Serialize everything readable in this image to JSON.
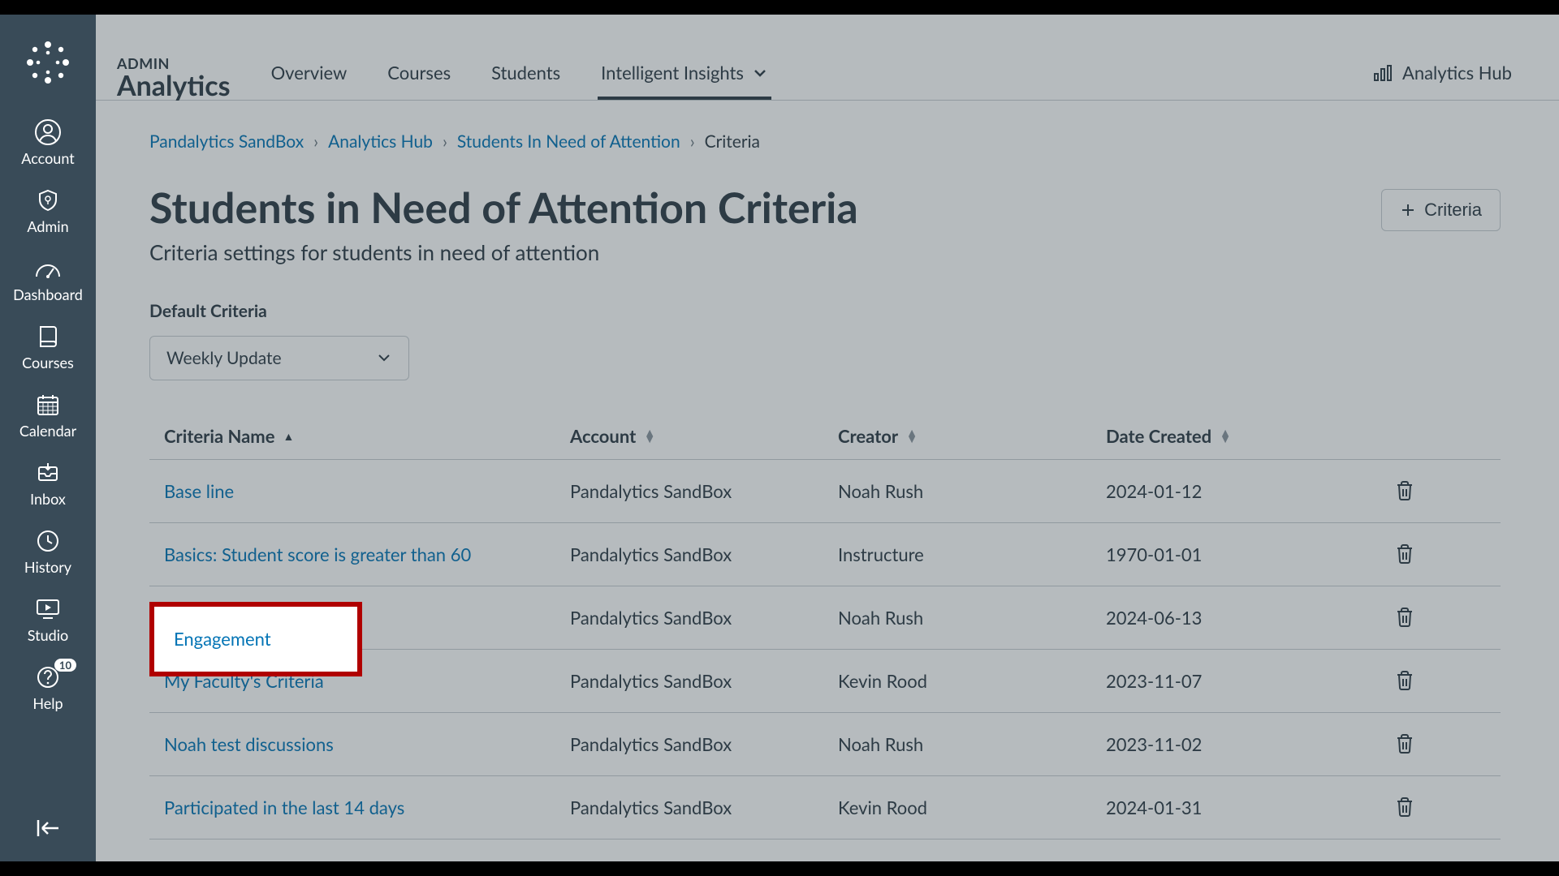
{
  "sidebar": {
    "items": [
      {
        "label": "Account"
      },
      {
        "label": "Admin"
      },
      {
        "label": "Dashboard"
      },
      {
        "label": "Courses"
      },
      {
        "label": "Calendar"
      },
      {
        "label": "Inbox"
      },
      {
        "label": "History"
      },
      {
        "label": "Studio"
      },
      {
        "label": "Help",
        "badge": "10"
      }
    ]
  },
  "branding": {
    "overline": "ADMIN",
    "title": "Analytics"
  },
  "tabs": [
    {
      "label": "Overview"
    },
    {
      "label": "Courses"
    },
    {
      "label": "Students"
    },
    {
      "label": "Intelligent Insights",
      "active": true,
      "hasChevron": true
    }
  ],
  "hubLink": "Analytics Hub",
  "breadcrumbs": [
    {
      "label": "Pandalytics SandBox",
      "link": true
    },
    {
      "label": "Analytics Hub",
      "link": true
    },
    {
      "label": "Students In Need of Attention",
      "link": true
    },
    {
      "label": "Criteria",
      "link": false
    }
  ],
  "page": {
    "title": "Students in Need of Attention Criteria",
    "subtitle": "Criteria settings for students in need of attention",
    "addButton": "Criteria",
    "defaultLabel": "Default Criteria",
    "defaultSelectValue": "Weekly Update"
  },
  "table": {
    "columns": [
      "Criteria Name",
      "Account",
      "Creator",
      "Date Created"
    ],
    "sortColumn": 0,
    "rows": [
      {
        "name": "Base line",
        "account": "Pandalytics SandBox",
        "creator": "Noah Rush",
        "date": "2024-01-12"
      },
      {
        "name": "Basics: Student score is greater than 60",
        "account": "Pandalytics SandBox",
        "creator": "Instructure",
        "date": "1970-01-01"
      },
      {
        "name": "Engagement",
        "account": "Pandalytics SandBox",
        "creator": "Noah Rush",
        "date": "2024-06-13",
        "highlighted": true
      },
      {
        "name": "My Faculty's Criteria",
        "account": "Pandalytics SandBox",
        "creator": "Kevin Rood",
        "date": "2023-11-07"
      },
      {
        "name": "Noah test discussions",
        "account": "Pandalytics SandBox",
        "creator": "Noah Rush",
        "date": "2023-11-02"
      },
      {
        "name": "Participated in the last 14 days",
        "account": "Pandalytics SandBox",
        "creator": "Kevin Rood",
        "date": "2024-01-31"
      }
    ]
  },
  "colors": {
    "sidebarBg": "#394B58",
    "link": "#0374B5",
    "text": "#2D3B45",
    "border": "#C7CDD1",
    "highlightBorder": "#B00000"
  }
}
